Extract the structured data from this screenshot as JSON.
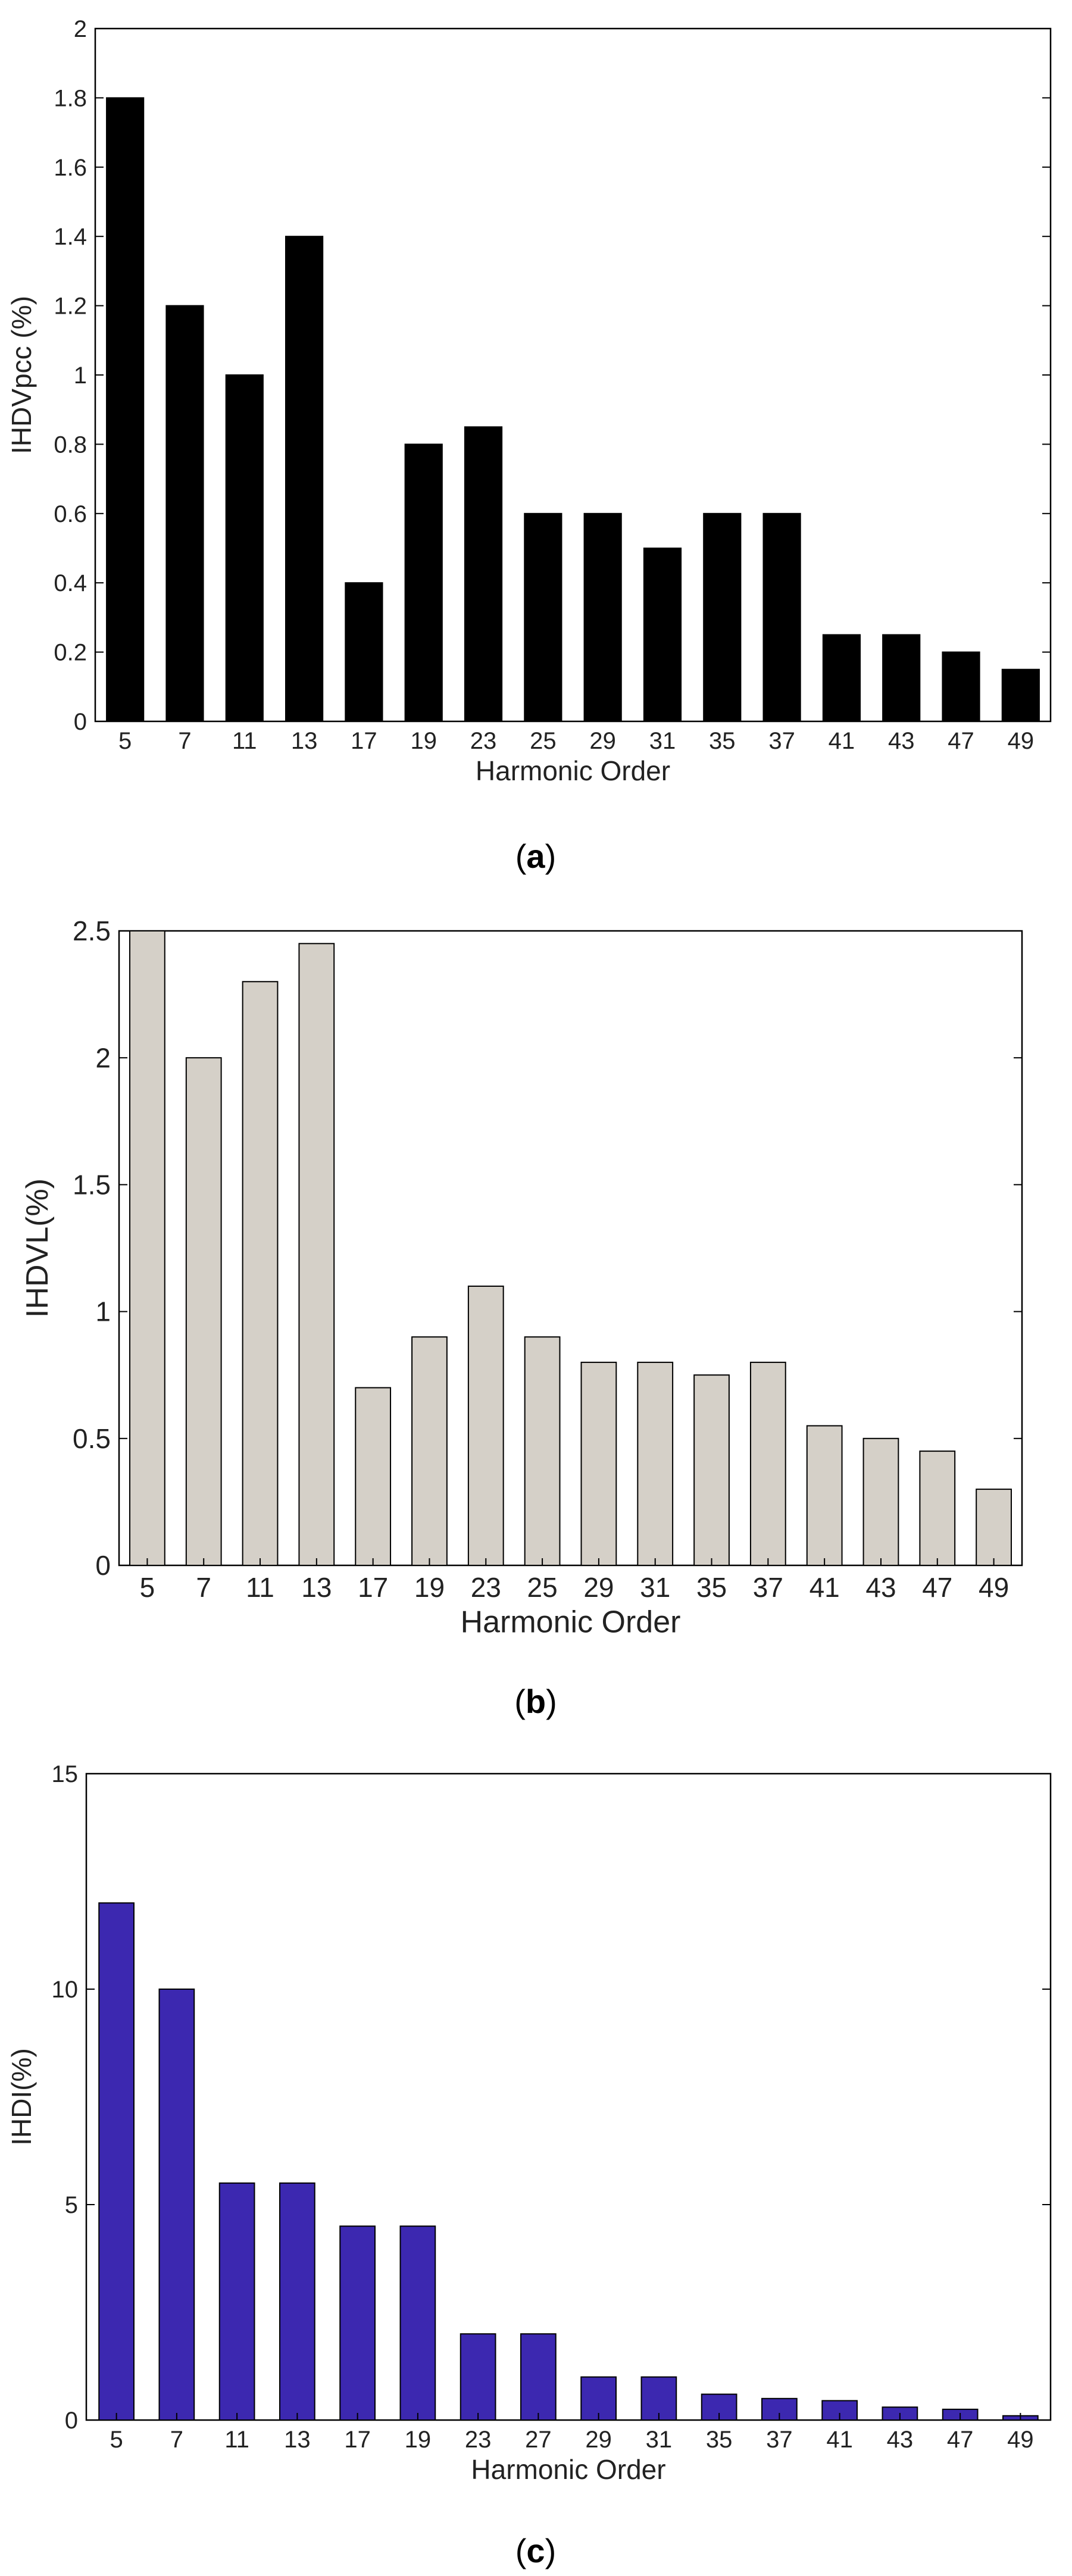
{
  "panels": [
    {
      "caption_open": "(",
      "caption_letter": "a",
      "caption_close": ")"
    },
    {
      "caption_open": "(",
      "caption_letter": "b",
      "caption_close": ")"
    },
    {
      "caption_open": "(",
      "caption_letter": "c",
      "caption_close": ")"
    }
  ],
  "chart_data": [
    {
      "type": "bar",
      "title": "",
      "xlabel": "Harmonic Order",
      "ylabel": "IHDVpcc (%)",
      "categories": [
        "5",
        "7",
        "11",
        "13",
        "17",
        "19",
        "23",
        "25",
        "29",
        "31",
        "35",
        "37",
        "41",
        "43",
        "47",
        "49"
      ],
      "values": [
        1.8,
        1.2,
        1.0,
        1.4,
        0.4,
        0.8,
        0.85,
        0.6,
        0.6,
        0.5,
        0.6,
        0.6,
        0.25,
        0.25,
        0.2,
        0.15
      ],
      "ylim": [
        0,
        2
      ],
      "yticks": [
        "0",
        "0.2",
        "0.4",
        "0.6",
        "0.8",
        "1",
        "1.2",
        "1.4",
        "1.6",
        "1.8",
        "2"
      ],
      "bar_color": "#000000",
      "grid": false
    },
    {
      "type": "bar",
      "title": "",
      "xlabel": "Harmonic Order",
      "ylabel": "IHDVL(%)",
      "categories": [
        "5",
        "7",
        "11",
        "13",
        "17",
        "19",
        "23",
        "25",
        "29",
        "31",
        "35",
        "37",
        "41",
        "43",
        "47",
        "49"
      ],
      "values": [
        2.5,
        2.0,
        2.3,
        2.45,
        0.7,
        0.9,
        1.1,
        0.9,
        0.8,
        0.8,
        0.75,
        0.8,
        0.55,
        0.5,
        0.45,
        0.3
      ],
      "ylim": [
        0,
        2.5
      ],
      "yticks": [
        "0",
        "0.5",
        "1",
        "1.5",
        "2",
        "2.5"
      ],
      "bar_color": "#d5d0c8",
      "grid": false
    },
    {
      "type": "bar",
      "title": "",
      "xlabel": "Harmonic Order",
      "ylabel": "IHDI(%)",
      "categories": [
        "5",
        "7",
        "11",
        "13",
        "17",
        "19",
        "23",
        "27",
        "29",
        "31",
        "35",
        "37",
        "41",
        "43",
        "47",
        "49"
      ],
      "values": [
        12,
        10,
        5.5,
        5.5,
        4.5,
        4.5,
        2.0,
        2.0,
        1.0,
        1.0,
        0.6,
        0.5,
        0.45,
        0.3,
        0.25,
        0.1
      ],
      "ylim": [
        0,
        15
      ],
      "yticks": [
        "0",
        "5",
        "10",
        "15"
      ],
      "bar_color": "#3c28b0",
      "grid": false
    }
  ]
}
